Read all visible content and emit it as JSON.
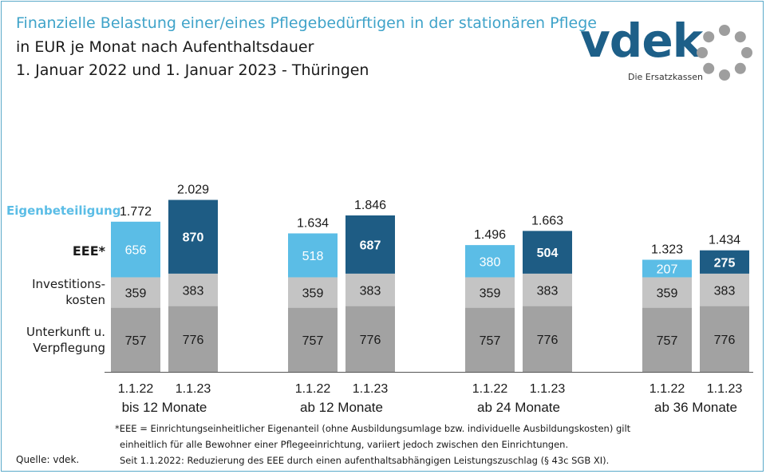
{
  "header": {
    "title": "Finanzielle Belastung einer/eines Pflegebedürftigen in der stationären Pflege",
    "subtitle": "in EUR je Monat nach Aufenthaltsdauer",
    "subtitle2": "1. Januar 2022 und 1. Januar 2023 - Thüringen"
  },
  "logo": {
    "word": "vdek",
    "tagline": "Die Ersatzkassen"
  },
  "chart_data": {
    "type": "bar",
    "stacked": true,
    "groups": [
      "bis 12 Monate",
      "ab 12 Monate",
      "ab 24 Monate",
      "ab 36 Monate"
    ],
    "dates": [
      "1.1.22",
      "1.1.23"
    ],
    "series": [
      {
        "name": "Unterkunft u. Verpflegung",
        "values": [
          [
            757,
            776
          ],
          [
            757,
            776
          ],
          [
            757,
            776
          ],
          [
            757,
            776
          ]
        ]
      },
      {
        "name": "Investitionskosten",
        "values": [
          [
            359,
            383
          ],
          [
            359,
            383
          ],
          [
            359,
            383
          ],
          [
            359,
            383
          ]
        ]
      },
      {
        "name": "EEE*",
        "values": [
          [
            656,
            870
          ],
          [
            518,
            687
          ],
          [
            380,
            504
          ],
          [
            207,
            275
          ]
        ]
      }
    ],
    "totals": [
      [
        "1.772",
        "2.029"
      ],
      [
        "1.634",
        "1.846"
      ],
      [
        "1.496",
        "1.663"
      ],
      [
        "1.323",
        "1.434"
      ]
    ],
    "unit": "EUR je Monat",
    "colors": {
      "unterkunft": "#a2a2a2",
      "invest": "#c4c4c4",
      "eee_2022": "#5bbde6",
      "eee_2023": "#1e5c84",
      "eigen_label": "#5bbde6"
    }
  },
  "labels": {
    "eigenbeteiligung": "Eigenbeteiligung",
    "eee": "EEE*",
    "invest_1": "Investitions-",
    "invest_2": "kosten",
    "unterkunft_1": "Unterkunft u.",
    "unterkunft_2": "Verpflegung"
  },
  "footnote": {
    "line1": "*EEE = Einrichtungseinheitlicher Eigenanteil (ohne Ausbildungsumlage bzw. individuelle Ausbildungskosten) gilt",
    "line2": "einheitlich für alle Bewohner einer Pflegeeinrichtung, variiert jedoch zwischen den Einrichtungen.",
    "line3": "Seit 1.1.2022: Reduzierung des EEE durch einen aufenthaltsabhängigen Leistungszuschlag (§ 43c SGB XI)."
  },
  "source": "Quelle: vdek."
}
